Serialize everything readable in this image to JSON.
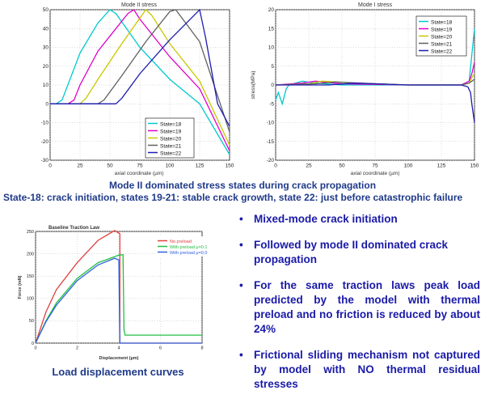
{
  "colors": {
    "cyan": "#00c8d0",
    "magenta": "#e000c8",
    "olive": "#c8c800",
    "gray": "#606060",
    "navy": "#1c1cb0",
    "red": "#e04040",
    "green": "#20c040",
    "blue": "#3060e0",
    "caption": "#1f3a8a",
    "bullet": "#1a1aa8"
  },
  "captions": {
    "stress_states": "Mode II dominated stress states during crack propagation",
    "states_note": "State-18: crack initiation, states 19-21: stable crack growth, state 22: just before catastrophic failure",
    "load_curves": "Load displacement curves"
  },
  "bullets": [
    "Mixed-mode crack initiation",
    "Followed by mode II dominated crack propagation",
    "For the same traction laws peak load predicted by the model with thermal preload and no friction is reduced by about 24%",
    "Frictional sliding mechanism not captured by model with NO thermal residual stresses"
  ],
  "chart_data": [
    {
      "type": "line",
      "title": "Mode II stress",
      "xlabel": "axial coordinate (µm)",
      "ylabel": "",
      "xlim": [
        0,
        150
      ],
      "ylim": [
        -30,
        50
      ],
      "xticks": [
        0,
        25,
        50,
        75,
        100,
        125,
        150
      ],
      "yticks": [
        -30,
        -20,
        -10,
        0,
        10,
        20,
        30,
        40,
        50
      ],
      "grid": true,
      "legend": "bottom-right",
      "series": [
        {
          "name": "State=18",
          "color": "#00c8d0",
          "x": [
            0,
            5,
            10,
            25,
            40,
            50,
            55,
            75,
            100,
            125,
            150
          ],
          "y": [
            0,
            0,
            2,
            27,
            43,
            50,
            48,
            30,
            13,
            0,
            -27
          ]
        },
        {
          "name": "State=19",
          "color": "#e000c8",
          "x": [
            0,
            15,
            20,
            25,
            40,
            55,
            65,
            70,
            75,
            100,
            125,
            150
          ],
          "y": [
            0,
            0,
            2,
            10,
            28,
            40,
            48,
            50,
            45,
            25,
            8,
            -25
          ]
        },
        {
          "name": "State=20",
          "color": "#c8c800",
          "x": [
            0,
            25,
            30,
            40,
            60,
            80,
            85,
            100,
            125,
            150
          ],
          "y": [
            0,
            0,
            3,
            13,
            32,
            50,
            47,
            32,
            12,
            -22
          ]
        },
        {
          "name": "State=21",
          "color": "#606060",
          "x": [
            0,
            40,
            45,
            60,
            80,
            100,
            105,
            125,
            150
          ],
          "y": [
            0,
            0,
            2,
            15,
            33,
            49,
            50,
            33,
            -15
          ]
        },
        {
          "name": "State=22",
          "color": "#1c1cb0",
          "x": [
            0,
            50,
            55,
            60,
            75,
            100,
            125,
            130,
            140,
            150
          ],
          "y": [
            0,
            0,
            0,
            3,
            16,
            34,
            50,
            35,
            0,
            -12
          ]
        }
      ]
    },
    {
      "type": "line",
      "title": "Mode I stress",
      "xlabel": "axial coordinate (µm)",
      "ylabel": "stress(MPa)",
      "xlim": [
        0,
        150
      ],
      "ylim": [
        -20,
        20
      ],
      "xticks": [
        0,
        25,
        50,
        75,
        100,
        125,
        150
      ],
      "yticks": [
        -20,
        -15,
        -10,
        -5,
        0,
        5,
        10,
        15,
        20
      ],
      "grid": true,
      "legend": "top-right",
      "series": [
        {
          "name": "State=18",
          "color": "#00c8d0",
          "x": [
            0,
            2,
            5,
            8,
            10,
            20,
            30,
            50,
            100,
            140,
            146,
            148,
            150
          ],
          "y": [
            -4,
            -2,
            -5,
            -1,
            0,
            1,
            0.5,
            0,
            0,
            0,
            1,
            8,
            15
          ]
        },
        {
          "name": "State=19",
          "color": "#e000c8",
          "x": [
            0,
            20,
            30,
            50,
            100,
            140,
            146,
            148,
            150
          ],
          "y": [
            0,
            0.5,
            1,
            0.3,
            0,
            0,
            1,
            3,
            6
          ]
        },
        {
          "name": "State=20",
          "color": "#c8c800",
          "x": [
            0,
            25,
            35,
            60,
            100,
            140,
            146,
            148,
            150
          ],
          "y": [
            0,
            0.3,
            1,
            0.5,
            0,
            0,
            0.5,
            2,
            3
          ]
        },
        {
          "name": "State=21",
          "color": "#606060",
          "x": [
            0,
            30,
            45,
            70,
            100,
            140,
            146,
            148,
            150
          ],
          "y": [
            0,
            0.3,
            0.8,
            0.4,
            0,
            0,
            0.5,
            1,
            1.5
          ]
        },
        {
          "name": "State=22",
          "color": "#1c1cb0",
          "x": [
            0,
            40,
            60,
            100,
            140,
            145,
            147,
            148,
            150
          ],
          "y": [
            0,
            0,
            0.5,
            0,
            0,
            -0.5,
            -2,
            -5,
            -10
          ]
        }
      ]
    },
    {
      "type": "line",
      "title": "Baseline Traction Law",
      "xlabel": "Displacement (µm)",
      "ylabel": "Force (mN)",
      "xlim": [
        0,
        8
      ],
      "ylim": [
        0,
        250
      ],
      "xticks": [
        0,
        2,
        4,
        6,
        8
      ],
      "yticks": [
        0,
        50,
        100,
        150,
        200,
        250
      ],
      "grid": true,
      "legend": "top-right",
      "series": [
        {
          "name": "No preload",
          "color": "#e04040",
          "x": [
            0,
            0.5,
            1,
            2,
            3,
            3.8,
            4.05,
            4.05,
            4.15,
            8
          ],
          "y": [
            0,
            70,
            120,
            180,
            230,
            252,
            245,
            0,
            0,
            0
          ]
        },
        {
          "name": "With preload μ=0.1",
          "color": "#20c040",
          "x": [
            0,
            0.5,
            1,
            2,
            3,
            4,
            4.2,
            4.25,
            4.3,
            8
          ],
          "y": [
            0,
            50,
            90,
            145,
            180,
            197,
            198,
            30,
            18,
            18
          ]
        },
        {
          "name": "With preload μ=0.0",
          "color": "#3060e0",
          "x": [
            0,
            0.5,
            1,
            2,
            3,
            3.8,
            4.0,
            4.05,
            8
          ],
          "y": [
            0,
            48,
            85,
            140,
            175,
            190,
            186,
            0,
            0
          ]
        }
      ]
    }
  ]
}
